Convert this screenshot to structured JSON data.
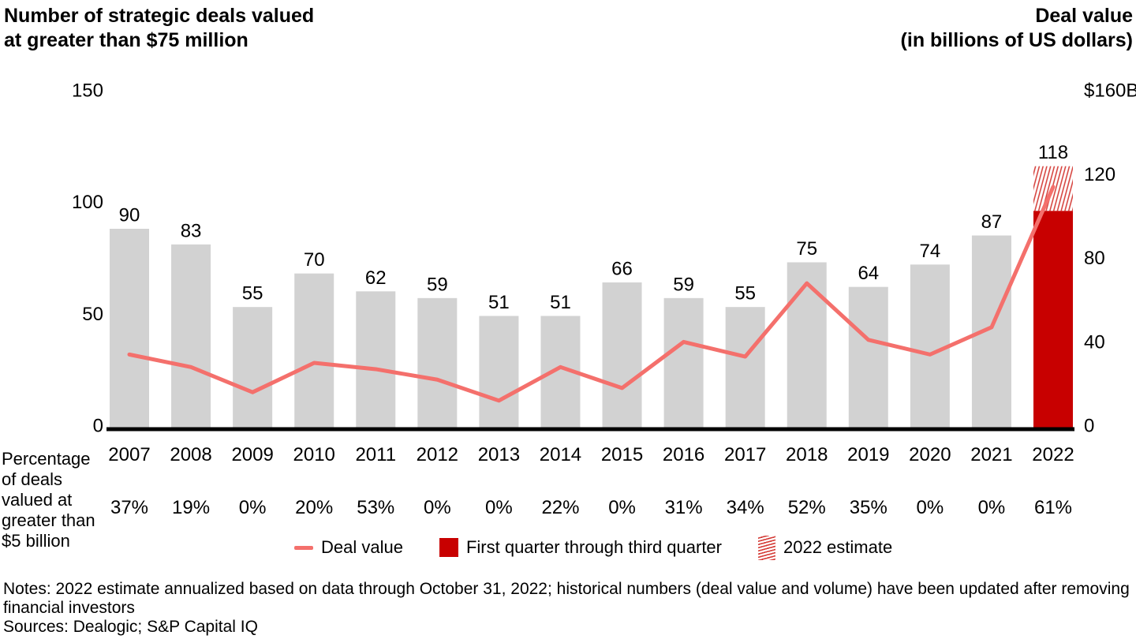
{
  "titles": {
    "left": "Number of strategic deals valued\nat greater than $75 million",
    "right": "Deal value\n(in billions of US dollars)"
  },
  "percent_row_label": "Percentage\nof deals\nvalued at\ngreater than\n$5 billion",
  "legend": {
    "deal_value": "Deal value",
    "q1_q3": "First quarter through third quarter",
    "estimate": "2022 estimate"
  },
  "notes": "Notes: 2022 estimate annualized based on data through October 31, 2022; historical numbers (deal value and volume) have been updated after removing\nfinancial investors",
  "sources": "Sources: Dealogic; S&P Capital IQ",
  "colors": {
    "bar_gray": "#d2d2d2",
    "bar_red": "#c80000",
    "hatch_red": "#d43b36",
    "line": "#f4706c",
    "axis": "#000000",
    "text": "#000000"
  },
  "chart_data": {
    "type": "bar+line",
    "categories": [
      "2007",
      "2008",
      "2009",
      "2010",
      "2011",
      "2012",
      "2013",
      "2014",
      "2015",
      "2016",
      "2017",
      "2018",
      "2019",
      "2020",
      "2021",
      "2022"
    ],
    "bars": {
      "name": "Number of strategic deals valued at greater than $75 million",
      "axis": "left",
      "values": [
        90,
        83,
        55,
        70,
        62,
        59,
        51,
        51,
        66,
        59,
        55,
        75,
        64,
        74,
        87,
        118
      ],
      "estimate_year": "2022",
      "estimate_total": 118,
      "estimate_solid": 98,
      "estimate_solid_meaning": "First quarter through third quarter",
      "estimate_hatch_meaning": "2022 estimate"
    },
    "line": {
      "name": "Deal value",
      "axis": "right",
      "unit": "billions of US dollars",
      "values": [
        36,
        30,
        18,
        32,
        29,
        24,
        14,
        30,
        20,
        42,
        35,
        70,
        43,
        36,
        49,
        116
      ]
    },
    "percent_row": {
      "label": "Percentage of deals valued at greater than $5 billion",
      "values": [
        "37%",
        "19%",
        "0%",
        "20%",
        "53%",
        "0%",
        "0%",
        "22%",
        "0%",
        "31%",
        "34%",
        "52%",
        "35%",
        "0%",
        "0%",
        "61%"
      ]
    },
    "left_axis": {
      "title": "Number of strategic deals valued at greater than $75 million",
      "ticks": [
        0,
        50,
        100,
        150
      ],
      "tick_labels": [
        "0",
        "50",
        "100",
        "150"
      ],
      "max": 150
    },
    "right_axis": {
      "title": "Deal value (in billions of US dollars)",
      "ticks": [
        0,
        40,
        80,
        120,
        160
      ],
      "tick_labels": [
        "0",
        "40",
        "80",
        "120",
        "$160B"
      ],
      "max": 160
    },
    "grid": false,
    "legend_position": "bottom"
  }
}
